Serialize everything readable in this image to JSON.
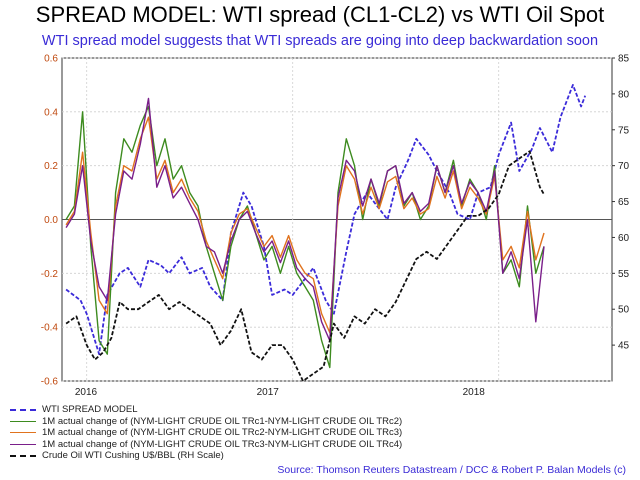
{
  "title": "SPREAD MODEL: WTI spread (CL1-CL2) vs WTI Oil Spot",
  "subtitle": "WTI spread model suggests that WTI spreads are going into deep backwardation soon",
  "source": "Source: Thomson Reuters Datastream / DCC & Robert P. Balan Models (c)",
  "colors": {
    "model": "#3b2bd9",
    "trc12": "#3d8b1f",
    "trc23": "#e0731e",
    "trc34": "#7a1f8a",
    "spot": "#111111",
    "left_axis": "#c04a10",
    "grid": "#cfcfcf"
  },
  "chart_data": {
    "type": "line",
    "left_axis": {
      "range": [
        -0.6,
        0.6
      ],
      "ticks": [
        "0.6",
        "0.4",
        "0.2",
        "0.0",
        "-0.2",
        "-0.4",
        "-0.6"
      ]
    },
    "right_axis": {
      "range": [
        40,
        85
      ],
      "ticks": [
        "85",
        "80",
        "75",
        "70",
        "65",
        "60",
        "55",
        "50",
        "45"
      ]
    },
    "x_axis": {
      "range": [
        2015.88,
        2018.55
      ],
      "labels": [
        "2016",
        "2017",
        "2018"
      ]
    },
    "legend": [
      "WTI SPREAD MODEL",
      "1M actual change of (NYM-LIGHT CRUDE OIL TRc1-NYM-LIGHT CRUDE OIL TRc2)",
      "1M actual change of (NYM-LIGHT CRUDE OIL TRc2-NYM-LIGHT CRUDE OIL TRc3)",
      "1M actual change of (NYM-LIGHT CRUDE OIL TRc3-NYM-LIGHT CRUDE OIL TRc4)",
      "Crude Oil WTI Cushing U$/BBL (RH Scale)"
    ],
    "series": [
      {
        "axis": "left",
        "color_key": "model",
        "dash": true,
        "x": [
          2015.9,
          2015.97,
          2016.0,
          2016.06,
          2016.1,
          2016.16,
          2016.2,
          2016.26,
          2016.3,
          2016.36,
          2016.4,
          2016.46,
          2016.5,
          2016.56,
          2016.6,
          2016.66,
          2016.7,
          2016.76,
          2016.8,
          2016.86,
          2016.9,
          2016.96,
          2017.0,
          2017.06,
          2017.1,
          2017.16,
          2017.2,
          2017.26,
          2017.3,
          2017.36,
          2017.4,
          2017.46,
          2017.5,
          2017.56,
          2017.6,
          2017.66,
          2017.7,
          2017.76,
          2017.8,
          2017.86,
          2017.9,
          2017.96,
          2018.0,
          2018.06,
          2018.1,
          2018.16,
          2018.2,
          2018.26,
          2018.3,
          2018.36,
          2018.4,
          2018.42
        ],
        "y": [
          -0.26,
          -0.3,
          -0.35,
          -0.5,
          -0.28,
          -0.2,
          -0.18,
          -0.25,
          -0.15,
          -0.17,
          -0.2,
          -0.14,
          -0.2,
          -0.18,
          -0.25,
          -0.3,
          -0.05,
          0.1,
          0.05,
          -0.1,
          -0.28,
          -0.26,
          -0.28,
          -0.22,
          -0.18,
          -0.3,
          -0.35,
          -0.12,
          0.02,
          0.1,
          0.06,
          0.0,
          0.12,
          0.22,
          0.3,
          0.24,
          0.18,
          0.1,
          0.02,
          0.0,
          0.1,
          0.12,
          0.24,
          0.36,
          0.18,
          0.26,
          0.34,
          0.25,
          0.38,
          0.5,
          0.42,
          0.46
        ]
      },
      {
        "axis": "left",
        "color_key": "trc12",
        "dash": false,
        "x": [
          2015.9,
          2015.94,
          2015.98,
          2016.02,
          2016.06,
          2016.1,
          2016.14,
          2016.18,
          2016.22,
          2016.26,
          2016.3,
          2016.34,
          2016.38,
          2016.42,
          2016.46,
          2016.5,
          2016.54,
          2016.58,
          2016.62,
          2016.66,
          2016.7,
          2016.74,
          2016.78,
          2016.82,
          2016.86,
          2016.9,
          2016.94,
          2016.98,
          2017.02,
          2017.06,
          2017.1,
          2017.14,
          2017.18,
          2017.22,
          2017.26,
          2017.3,
          2017.34,
          2017.38,
          2017.42,
          2017.46,
          2017.5,
          2017.54,
          2017.58,
          2017.62,
          2017.66,
          2017.7,
          2017.74,
          2017.78,
          2017.82,
          2017.86,
          2017.9,
          2017.94,
          2017.98,
          2018.02,
          2018.06,
          2018.1,
          2018.14,
          2018.18,
          2018.22
        ],
        "y": [
          0.0,
          0.05,
          0.4,
          -0.1,
          -0.45,
          -0.5,
          0.1,
          0.3,
          0.25,
          0.35,
          0.42,
          0.2,
          0.3,
          0.15,
          0.2,
          0.1,
          0.05,
          -0.1,
          -0.2,
          -0.3,
          -0.1,
          0.0,
          0.05,
          -0.05,
          -0.15,
          -0.1,
          -0.2,
          -0.1,
          -0.2,
          -0.25,
          -0.3,
          -0.45,
          -0.55,
          0.1,
          0.3,
          0.2,
          0.0,
          0.15,
          0.05,
          0.18,
          0.2,
          0.05,
          0.1,
          0.0,
          0.05,
          0.2,
          0.1,
          0.22,
          0.05,
          0.15,
          0.1,
          0.0,
          0.2,
          -0.2,
          -0.15,
          -0.25,
          0.05,
          -0.2,
          -0.1
        ]
      },
      {
        "axis": "left",
        "color_key": "trc23",
        "dash": false,
        "x": [
          2015.9,
          2015.94,
          2015.98,
          2016.02,
          2016.06,
          2016.1,
          2016.14,
          2016.18,
          2016.22,
          2016.26,
          2016.3,
          2016.34,
          2016.38,
          2016.42,
          2016.46,
          2016.5,
          2016.54,
          2016.58,
          2016.62,
          2016.66,
          2016.7,
          2016.74,
          2016.78,
          2016.82,
          2016.86,
          2016.9,
          2016.94,
          2016.98,
          2017.02,
          2017.06,
          2017.1,
          2017.14,
          2017.18,
          2017.22,
          2017.26,
          2017.3,
          2017.34,
          2017.38,
          2017.42,
          2017.46,
          2017.5,
          2017.54,
          2017.58,
          2017.62,
          2017.66,
          2017.7,
          2017.74,
          2017.78,
          2017.82,
          2017.86,
          2017.9,
          2017.94,
          2017.98,
          2018.02,
          2018.06,
          2018.1,
          2018.14,
          2018.18,
          2018.22
        ],
        "y": [
          -0.02,
          0.03,
          0.25,
          -0.05,
          -0.3,
          -0.35,
          0.05,
          0.2,
          0.18,
          0.3,
          0.38,
          0.15,
          0.22,
          0.1,
          0.15,
          0.08,
          0.03,
          -0.08,
          -0.15,
          -0.22,
          -0.05,
          0.02,
          0.04,
          -0.03,
          -0.1,
          -0.06,
          -0.14,
          -0.06,
          -0.15,
          -0.2,
          -0.22,
          -0.35,
          -0.42,
          0.05,
          0.2,
          0.15,
          0.02,
          0.12,
          0.04,
          0.14,
          0.16,
          0.04,
          0.08,
          0.02,
          0.04,
          0.16,
          0.08,
          0.18,
          0.04,
          0.12,
          0.08,
          0.02,
          0.16,
          -0.15,
          -0.1,
          -0.18,
          0.03,
          -0.15,
          -0.05
        ]
      },
      {
        "axis": "left",
        "color_key": "trc34",
        "dash": false,
        "x": [
          2015.9,
          2015.94,
          2015.98,
          2016.02,
          2016.06,
          2016.1,
          2016.14,
          2016.18,
          2016.22,
          2016.26,
          2016.3,
          2016.34,
          2016.38,
          2016.42,
          2016.46,
          2016.5,
          2016.54,
          2016.58,
          2016.62,
          2016.66,
          2016.7,
          2016.74,
          2016.78,
          2016.82,
          2016.86,
          2016.9,
          2016.94,
          2016.98,
          2017.02,
          2017.06,
          2017.1,
          2017.14,
          2017.18,
          2017.22,
          2017.26,
          2017.3,
          2017.34,
          2017.38,
          2017.42,
          2017.46,
          2017.5,
          2017.54,
          2017.58,
          2017.62,
          2017.66,
          2017.7,
          2017.74,
          2017.78,
          2017.82,
          2017.86,
          2017.9,
          2017.94,
          2017.98,
          2018.02,
          2018.06,
          2018.1,
          2018.14,
          2018.18,
          2018.22
        ],
        "y": [
          -0.03,
          0.02,
          0.2,
          -0.08,
          -0.25,
          -0.3,
          0.02,
          0.18,
          0.15,
          0.28,
          0.45,
          0.12,
          0.2,
          0.08,
          0.12,
          0.06,
          0.0,
          -0.1,
          -0.12,
          -0.2,
          -0.08,
          0.0,
          0.03,
          -0.05,
          -0.12,
          -0.08,
          -0.16,
          -0.08,
          -0.18,
          -0.22,
          -0.25,
          -0.38,
          -0.45,
          0.08,
          0.22,
          0.18,
          0.05,
          0.15,
          0.06,
          0.18,
          0.2,
          0.06,
          0.1,
          0.03,
          0.06,
          0.2,
          0.1,
          0.2,
          0.06,
          0.14,
          0.1,
          0.03,
          0.18,
          -0.2,
          -0.12,
          -0.22,
          0.0,
          -0.38,
          -0.1
        ]
      },
      {
        "axis": "right",
        "color_key": "spot",
        "dash": true,
        "x": [
          2015.9,
          2015.95,
          2016.0,
          2016.04,
          2016.08,
          2016.12,
          2016.16,
          2016.2,
          2016.25,
          2016.3,
          2016.35,
          2016.4,
          2016.45,
          2016.5,
          2016.55,
          2016.6,
          2016.65,
          2016.7,
          2016.75,
          2016.8,
          2016.85,
          2016.9,
          2016.95,
          2017.0,
          2017.05,
          2017.1,
          2017.15,
          2017.2,
          2017.25,
          2017.3,
          2017.35,
          2017.4,
          2017.45,
          2017.5,
          2017.55,
          2017.6,
          2017.65,
          2017.7,
          2017.75,
          2017.8,
          2017.85,
          2017.9,
          2017.95,
          2018.0,
          2018.05,
          2018.1,
          2018.15,
          2018.2,
          2018.22
        ],
        "y": [
          48,
          49,
          45,
          43,
          44,
          46,
          51,
          50,
          50,
          51,
          52,
          50,
          51,
          50,
          49,
          48,
          45,
          47,
          50,
          44,
          43,
          45,
          45,
          43,
          40,
          41,
          42,
          48,
          46,
          49,
          48,
          50,
          49,
          51,
          54,
          57,
          58,
          57,
          59,
          61,
          63,
          63,
          64,
          66,
          70,
          71,
          72,
          67,
          66
        ]
      }
    ]
  }
}
